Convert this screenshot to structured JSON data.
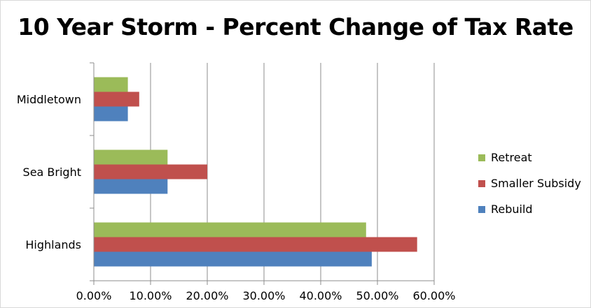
{
  "chart_data": {
    "type": "bar",
    "orientation": "horizontal",
    "title": "10 Year Storm - Percent Change of Tax Rate",
    "xlabel": "",
    "ylabel": "",
    "categories": [
      "Highlands",
      "Sea Bright",
      "Middletown"
    ],
    "series": [
      {
        "name": "Rebuild",
        "color": "#4f81bd",
        "values": [
          0.49,
          0.13,
          0.06
        ]
      },
      {
        "name": "Smaller Subsidy",
        "color": "#c0504d",
        "values": [
          0.57,
          0.2,
          0.08
        ]
      },
      {
        "name": "Retreat",
        "color": "#9bbb59",
        "values": [
          0.48,
          0.13,
          0.06
        ]
      }
    ],
    "xlim": [
      0,
      0.6
    ],
    "x_ticks": [
      "0.00%",
      "10.00%",
      "20.00%",
      "30.00%",
      "40.00%",
      "50.00%",
      "60.00%"
    ],
    "grid": true,
    "legend_position": "right",
    "legend_order": [
      "Retreat",
      "Smaller Subsidy",
      "Rebuild"
    ]
  }
}
